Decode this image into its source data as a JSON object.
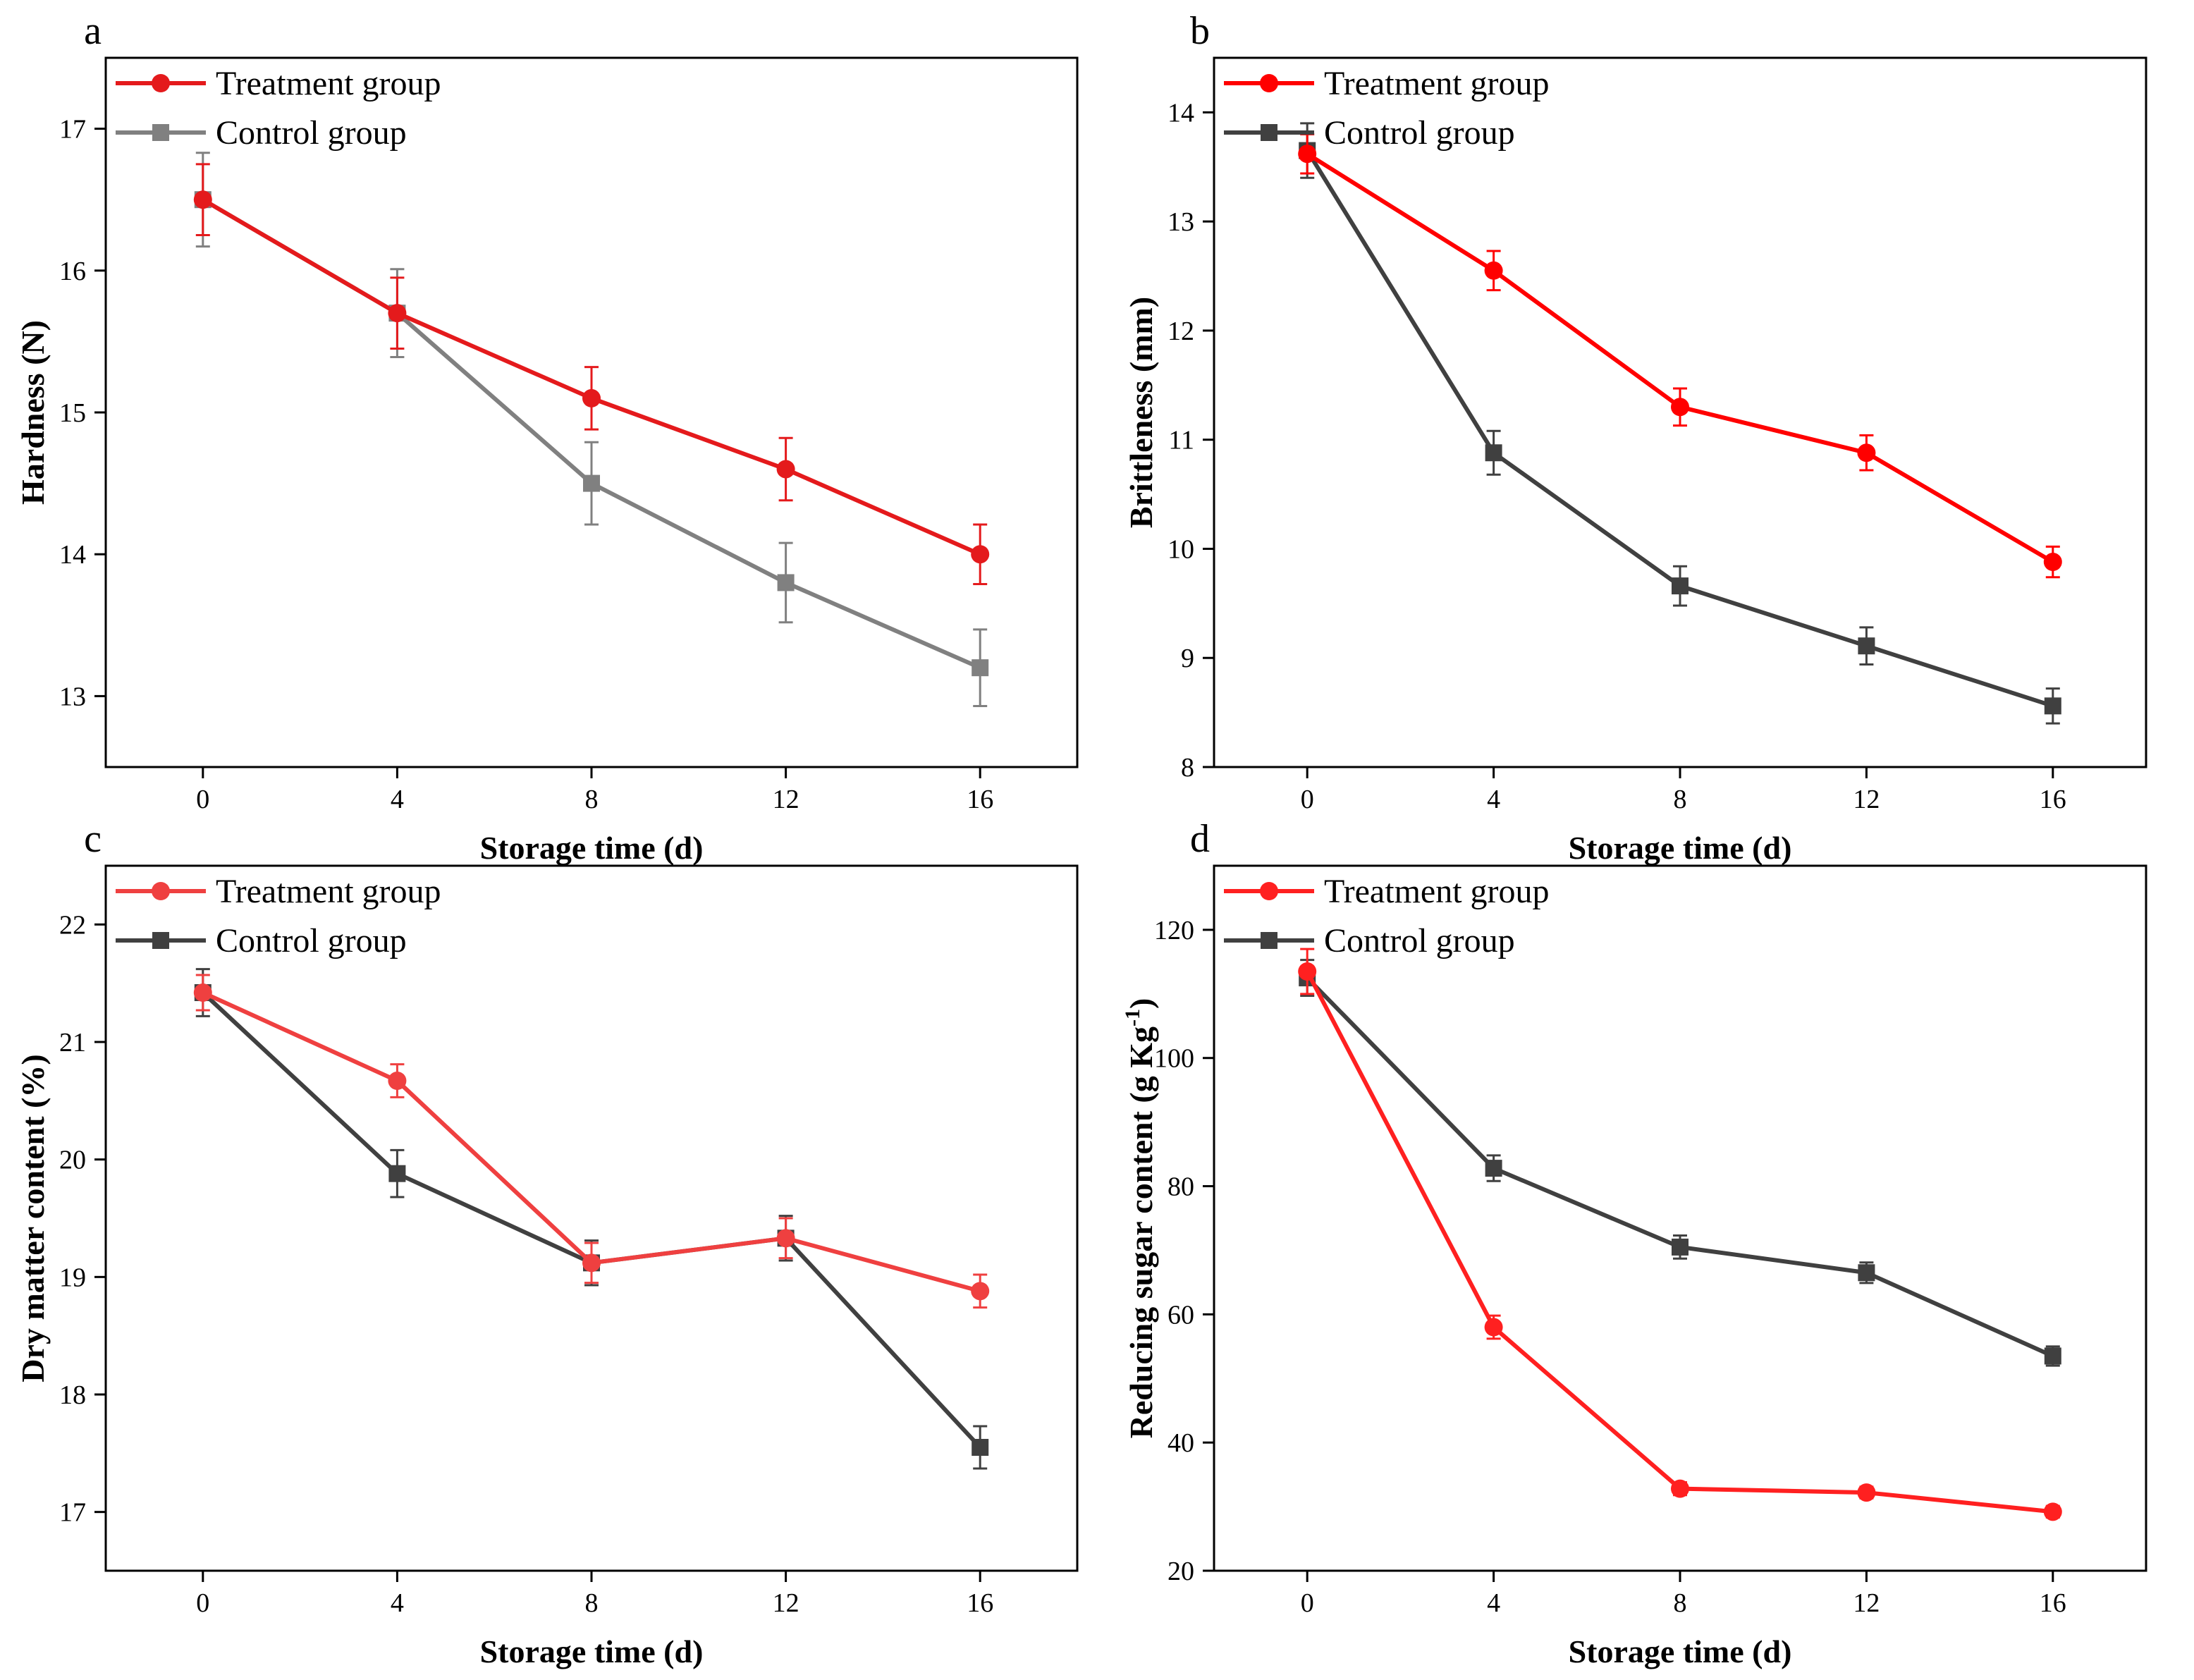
{
  "chart_data": [
    {
      "id": "a",
      "type": "line",
      "panel_label": "a",
      "title": "",
      "xlabel": "Storage time (d)",
      "ylabel": "Hardness (N)",
      "xlim": [
        -2,
        18
      ],
      "ylim": [
        12.5,
        17.5
      ],
      "x": [
        0,
        4,
        8,
        12,
        16
      ],
      "xticks": [
        0,
        4,
        8,
        12,
        16
      ],
      "yticks": [
        13,
        14,
        15,
        16,
        17
      ],
      "legend_position": "top-left",
      "grid": false,
      "series": [
        {
          "name": "Treatment group",
          "marker": "circle",
          "color": "#e41a1c",
          "values": [
            16.5,
            15.7,
            15.1,
            14.6,
            14.0
          ],
          "errors": [
            0.25,
            0.25,
            0.22,
            0.22,
            0.21
          ]
        },
        {
          "name": "Control group",
          "marker": "square",
          "color": "#808080",
          "values": [
            16.5,
            15.7,
            14.5,
            13.8,
            13.2
          ],
          "errors": [
            0.33,
            0.31,
            0.29,
            0.28,
            0.27
          ]
        }
      ]
    },
    {
      "id": "b",
      "type": "line",
      "panel_label": "b",
      "title": "",
      "xlabel": "Storage time (d)",
      "ylabel": "Brittleness (mm)",
      "xlim": [
        -2,
        18
      ],
      "ylim": [
        8,
        14.5
      ],
      "x": [
        0,
        4,
        8,
        12,
        16
      ],
      "xticks": [
        0,
        4,
        8,
        12,
        16
      ],
      "yticks": [
        8,
        9,
        10,
        11,
        12,
        13,
        14
      ],
      "legend_position": "top-left",
      "grid": false,
      "series": [
        {
          "name": "Treatment group",
          "marker": "circle",
          "color": "#ff0000",
          "values": [
            13.62,
            12.55,
            11.3,
            10.88,
            9.88
          ],
          "errors": [
            0.18,
            0.18,
            0.17,
            0.16,
            0.14
          ]
        },
        {
          "name": "Control group",
          "marker": "square",
          "color": "#404040",
          "values": [
            13.65,
            10.88,
            9.66,
            9.11,
            8.56
          ],
          "errors": [
            0.25,
            0.2,
            0.18,
            0.17,
            0.16
          ]
        }
      ]
    },
    {
      "id": "c",
      "type": "line",
      "panel_label": "c",
      "title": "",
      "xlabel": "Storage time (d)",
      "ylabel": "Dry matter content (%)",
      "xlim": [
        -2,
        18
      ],
      "ylim": [
        16.5,
        22.5
      ],
      "x": [
        0,
        4,
        8,
        12,
        16
      ],
      "xticks": [
        0,
        4,
        8,
        12,
        16
      ],
      "yticks": [
        17,
        18,
        19,
        20,
        21,
        22
      ],
      "legend_position": "top-left",
      "grid": false,
      "series": [
        {
          "name": "Treatment group",
          "marker": "circle",
          "color": "#ef4040",
          "values": [
            21.42,
            20.67,
            19.12,
            19.33,
            18.88
          ],
          "errors": [
            0.15,
            0.14,
            0.17,
            0.17,
            0.14
          ]
        },
        {
          "name": "Control group",
          "marker": "square",
          "color": "#404040",
          "values": [
            21.42,
            19.88,
            19.12,
            19.33,
            17.55
          ],
          "errors": [
            0.2,
            0.2,
            0.19,
            0.19,
            0.18
          ]
        }
      ]
    },
    {
      "id": "d",
      "type": "line",
      "panel_label": "d",
      "title": "",
      "xlabel": "Storage time (d)",
      "ylabel": "Reducing sugar content (g Kg",
      "ylabel_sup": "-1",
      "ylabel_tail": ")",
      "xlim": [
        -2,
        18
      ],
      "ylim": [
        20,
        130
      ],
      "x": [
        0,
        4,
        8,
        12,
        16
      ],
      "xticks": [
        0,
        4,
        8,
        12,
        16
      ],
      "yticks": [
        20,
        40,
        60,
        80,
        100,
        120
      ],
      "legend_position": "top-left",
      "grid": false,
      "series": [
        {
          "name": "Treatment group",
          "marker": "circle",
          "color": "#ff2020",
          "values": [
            113.5,
            58.0,
            32.8,
            32.2,
            29.2
          ],
          "errors": [
            3.5,
            1.8,
            1.0,
            0.9,
            0.9
          ]
        },
        {
          "name": "Control group",
          "marker": "square",
          "color": "#404040",
          "values": [
            112.5,
            82.8,
            70.5,
            66.5,
            53.5
          ],
          "errors": [
            2.8,
            2.0,
            1.8,
            1.6,
            1.5
          ]
        }
      ]
    }
  ]
}
